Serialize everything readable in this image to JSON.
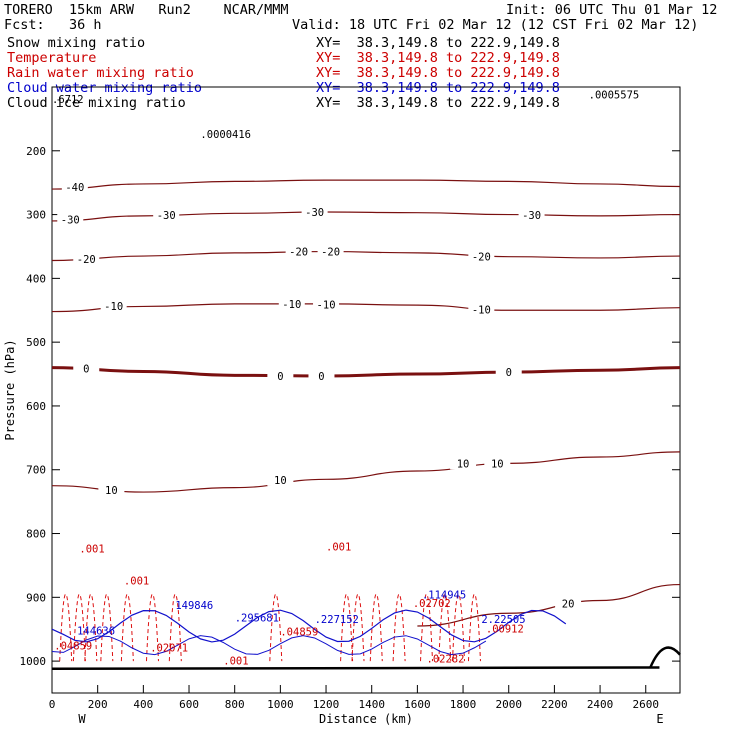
{
  "header": {
    "model": "TORERO  15km ARW   Run2    NCAR/MMM",
    "init": "Init: 06 UTC Thu 01 Mar 12",
    "fcst": "Fcst:   36 h",
    "valid": "Valid: 18 UTC Fri 02 Mar 12 (12 CST Fri 02 Mar 12)"
  },
  "legend": [
    {
      "name": "Snow mixing ratio",
      "xy": "XY=  38.3,149.8 to 222.9,149.8",
      "color": "#000000",
      "xycolor": "#000000"
    },
    {
      "name": "Temperature",
      "xy": "XY=  38.3,149.8 to 222.9,149.8",
      "color": "#cc0000",
      "xycolor": "#cc0000"
    },
    {
      "name": "Rain water mixing ratio",
      "xy": "XY=  38.3,149.8 to 222.9,149.8",
      "color": "#cc0000",
      "xycolor": "#cc0000"
    },
    {
      "name": "Cloud water mixing ratio",
      "xy": "XY=  38.3,149.8 to 222.9,149.8",
      "color": "#0000cc",
      "xycolor": "#0000cc"
    },
    {
      "name": "Cloud ice mixing ratio",
      "xy": "XY=  38.3,149.8 to 222.9,149.8",
      "color": "#000000",
      "xycolor": "#000000"
    }
  ],
  "chart_data": {
    "type": "line",
    "xlabel": "Distance (km)",
    "ylabel": "Pressure (hPa)",
    "xlim": [
      0,
      2750
    ],
    "ylim": [
      1050,
      100
    ],
    "xticks": [
      "0",
      "200",
      "400",
      "600",
      "800",
      "1000",
      "1200",
      "1400",
      "1600",
      "1800",
      "2000",
      "2200",
      "2400",
      "2600"
    ],
    "xtick_values": [
      0,
      200,
      400,
      600,
      800,
      1000,
      1200,
      1400,
      1600,
      1800,
      2000,
      2200,
      2400,
      2600
    ],
    "yticks": [
      "200",
      "300",
      "400",
      "500",
      "600",
      "700",
      "800",
      "900",
      "1000"
    ],
    "ytick_values": [
      200,
      300,
      400,
      500,
      600,
      700,
      800,
      900,
      1000
    ],
    "x_end_labels": {
      "left": "W",
      "right": "E"
    },
    "temperature_contours": [
      {
        "label": "-40",
        "points": [
          [
            0,
            260
          ],
          [
            400,
            252
          ],
          [
            800,
            248
          ],
          [
            1200,
            246
          ],
          [
            1600,
            246
          ],
          [
            2000,
            248
          ],
          [
            2400,
            252
          ],
          [
            2750,
            256
          ]
        ],
        "label_at": [
          [
            100,
            257
          ]
        ]
      },
      {
        "label": "-30",
        "points": [
          [
            0,
            310
          ],
          [
            400,
            302
          ],
          [
            800,
            298
          ],
          [
            1200,
            296
          ],
          [
            1600,
            297
          ],
          [
            2000,
            300
          ],
          [
            2400,
            302
          ],
          [
            2750,
            300
          ]
        ],
        "label_at": [
          [
            80,
            308
          ],
          [
            500,
            301
          ],
          [
            1150,
            296
          ],
          [
            2100,
            301
          ]
        ]
      },
      {
        "label": "-20",
        "points": [
          [
            0,
            372
          ],
          [
            400,
            365
          ],
          [
            800,
            360
          ],
          [
            1200,
            358
          ],
          [
            1600,
            360
          ],
          [
            2000,
            366
          ],
          [
            2400,
            368
          ],
          [
            2750,
            365
          ]
        ],
        "label_at": [
          [
            150,
            370
          ],
          [
            1080,
            358
          ],
          [
            1220,
            358
          ],
          [
            1880,
            366
          ]
        ]
      },
      {
        "label": "-10",
        "points": [
          [
            0,
            452
          ],
          [
            400,
            444
          ],
          [
            800,
            440
          ],
          [
            1200,
            440
          ],
          [
            1600,
            442
          ],
          [
            2000,
            450
          ],
          [
            2400,
            450
          ],
          [
            2750,
            446
          ]
        ],
        "label_at": [
          [
            270,
            443
          ],
          [
            1050,
            440
          ],
          [
            1200,
            441
          ],
          [
            1880,
            449
          ]
        ]
      },
      {
        "label": "0",
        "points": [
          [
            0,
            540
          ],
          [
            400,
            546
          ],
          [
            800,
            552
          ],
          [
            1200,
            553
          ],
          [
            1600,
            550
          ],
          [
            2000,
            547
          ],
          [
            2400,
            544
          ],
          [
            2750,
            540
          ]
        ],
        "label_at": [
          [
            150,
            541
          ],
          [
            1000,
            553
          ],
          [
            1180,
            553
          ],
          [
            2000,
            547
          ]
        ]
      },
      {
        "label": "10",
        "points": [
          [
            0,
            725
          ],
          [
            400,
            735
          ],
          [
            800,
            728
          ],
          [
            1200,
            715
          ],
          [
            1600,
            702
          ],
          [
            2000,
            690
          ],
          [
            2400,
            680
          ],
          [
            2750,
            672
          ]
        ],
        "label_at": [
          [
            260,
            732
          ],
          [
            1000,
            716
          ],
          [
            1800,
            690
          ],
          [
            1950,
            690
          ]
        ]
      },
      {
        "label": "20",
        "points": [
          [
            1600,
            945
          ],
          [
            2000,
            925
          ],
          [
            2400,
            905
          ],
          [
            2750,
            880
          ]
        ],
        "label_at": [
          [
            2260,
            910
          ]
        ]
      }
    ],
    "rain_water_labels": [
      {
        "label": ".001",
        "x": 120,
        "y": 830
      },
      {
        "label": ".001",
        "x": 315,
        "y": 880
      },
      {
        "label": ".001",
        "x": 1200,
        "y": 827
      },
      {
        "label": ".001",
        "x": 750,
        "y": 1005
      },
      {
        "label": ".02702",
        "x": 1580,
        "y": 915
      },
      {
        "label": ".00912",
        "x": 1900,
        "y": 955
      },
      {
        "label": ".02282",
        "x": 1640,
        "y": 1002
      },
      {
        "label": ".04859",
        "x": 10,
        "y": 982
      },
      {
        "label": ".02071",
        "x": 430,
        "y": 985
      },
      {
        "label": ".04859",
        "x": 1000,
        "y": 960
      }
    ],
    "cloud_water_labels": [
      {
        "label": "144636",
        "x": 110,
        "y": 958
      },
      {
        "label": "149846",
        "x": 540,
        "y": 918
      },
      {
        "label": ".295681",
        "x": 800,
        "y": 938
      },
      {
        "label": ".227152",
        "x": 1150,
        "y": 940
      },
      {
        "label": ".114945",
        "x": 1620,
        "y": 902
      },
      {
        "label": "2.22505",
        "x": 1880,
        "y": 940
      }
    ],
    "extremum_labels": [
      {
        "label": ".6712",
        "x": 0,
        "y": 125
      },
      {
        "label": ".0000416",
        "x": 650,
        "y": 180
      },
      {
        "label": ".0005575",
        "x": 2350,
        "y": 118
      }
    ]
  }
}
